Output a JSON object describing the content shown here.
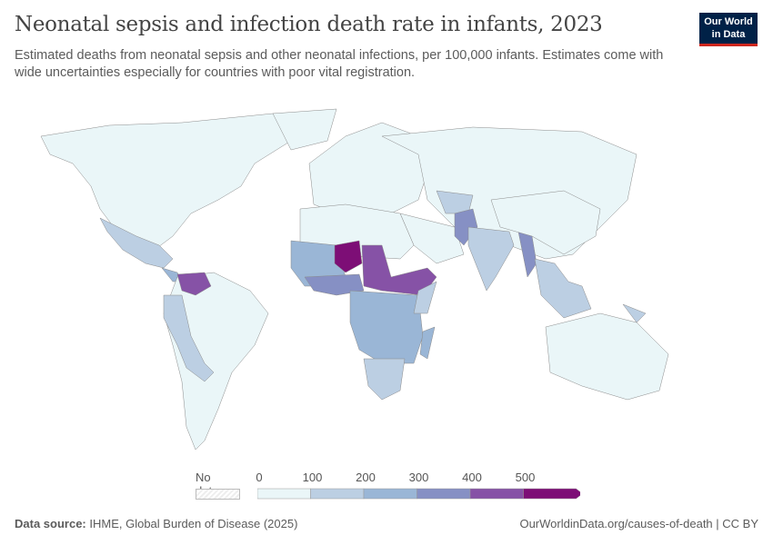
{
  "title": "Neonatal sepsis and infection death rate in infants, 2023",
  "subtitle": "Estimated deaths from neonatal sepsis and other neonatal infections, per 100,000 infants. Estimates come with wide uncertainties especially for countries with poor vital registration.",
  "logo": {
    "line1": "Our World",
    "line2": "in Data"
  },
  "legend": {
    "no_data": "No data",
    "ticks": [
      "0",
      "100",
      "200",
      "300",
      "400",
      "500"
    ],
    "colors": [
      "#eaf6f8",
      "#bccfe3",
      "#9ab6d6",
      "#8690c4",
      "#8652a6",
      "#7d0e76"
    ]
  },
  "footer": {
    "source_label": "Data source:",
    "source": "IHME, Global Burden of Disease (2025)",
    "link": "OurWorldinData.org/causes-of-death | CC BY"
  }
}
